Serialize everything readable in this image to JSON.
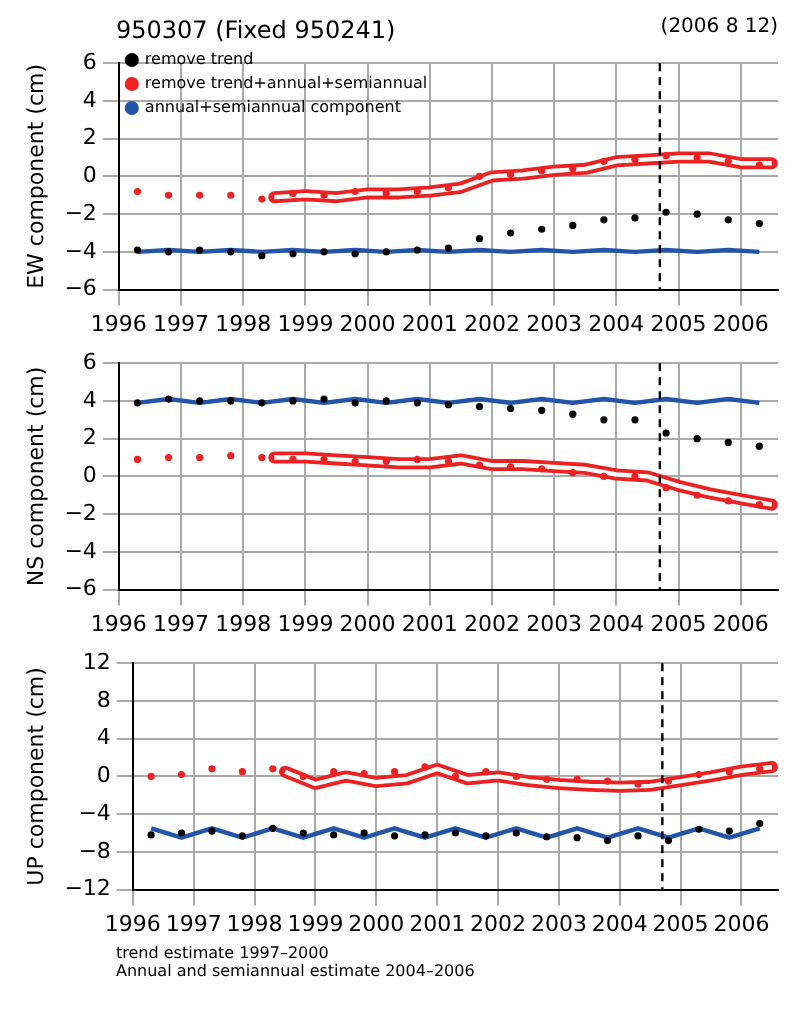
{
  "chart_data": [
    {
      "type": "scatter",
      "title": "950307 (Fixed 950241)",
      "subtitle": "(2006 8 12)",
      "ylabel": "EW component (cm)",
      "xlim": [
        1996,
        2006.6
      ],
      "xticks": [
        1996,
        1997,
        1998,
        1999,
        2000,
        2001,
        2002,
        2003,
        2004,
        2005,
        2006
      ],
      "ylim": [
        -6,
        6
      ],
      "yticks": [
        -6,
        -4,
        -2,
        0,
        2,
        4,
        6
      ],
      "grid": true,
      "legend": "top left",
      "ref_lines": [
        {
          "axis": "x",
          "value": 2004.7,
          "color": "#000000",
          "line_style": "dashed"
        }
      ],
      "series": [
        {
          "type": "scatter",
          "name": "remove trend",
          "color": "#000000",
          "marker": "circle",
          "x": [
            1996.3,
            1996.8,
            1997.3,
            1997.8,
            1998.3,
            1998.8,
            1999.3,
            1999.8,
            2000.3,
            2000.8,
            2001.3,
            2001.8,
            2002.3,
            2002.8,
            2003.3,
            2003.8,
            2004.3,
            2004.8,
            2005.3,
            2005.8,
            2006.3
          ],
          "values": [
            -3.9,
            -4.0,
            -3.9,
            -4.0,
            -4.2,
            -4.1,
            -4.0,
            -4.1,
            -4.0,
            -3.9,
            -3.8,
            -3.3,
            -3.0,
            -2.8,
            -2.6,
            -2.3,
            -2.2,
            -1.9,
            -2.0,
            -2.3,
            -2.5
          ]
        },
        {
          "type": "scatter",
          "name": "remove trend+annual+semiannual",
          "color": "#ee2222",
          "marker": "circle",
          "x": [
            1996.3,
            1996.8,
            1997.3,
            1997.8,
            1998.3,
            1998.8,
            1999.3,
            1999.8,
            2000.3,
            2000.8,
            2001.3,
            2001.8,
            2002.3,
            2002.8,
            2003.3,
            2003.8,
            2004.3,
            2004.8,
            2005.3,
            2005.8,
            2006.3
          ],
          "values": [
            -0.8,
            -1.0,
            -1.0,
            -1.0,
            -1.2,
            -0.9,
            -1.0,
            -0.8,
            -0.9,
            -0.8,
            -0.6,
            0.0,
            0.1,
            0.3,
            0.4,
            0.8,
            0.9,
            1.1,
            1.0,
            0.8,
            0.6
          ]
        },
        {
          "type": "line",
          "color": "#ffffff",
          "x": [
            1998.5,
            1999,
            1999.5,
            2000,
            2000.5,
            2001,
            2001.5,
            2002,
            2002.5,
            2003,
            2003.5,
            2004,
            2004.5,
            2005,
            2005.5,
            2006,
            2006.5
          ],
          "values": [
            -1.1,
            -1.0,
            -1.1,
            -0.9,
            -0.9,
            -0.8,
            -0.6,
            0.0,
            0.1,
            0.3,
            0.4,
            0.8,
            0.9,
            1.0,
            1.0,
            0.7,
            0.7
          ]
        },
        {
          "type": "line",
          "name": "annual+semiannual component",
          "color": "#2255aa",
          "x": [
            1996.3,
            1996.8,
            1997.3,
            1997.8,
            1998.3,
            1998.8,
            1999.3,
            1999.8,
            2000.3,
            2000.8,
            2001.3,
            2001.8,
            2002.3,
            2002.8,
            2003.3,
            2003.8,
            2004.3,
            2004.8,
            2005.3,
            2005.8,
            2006.3
          ],
          "values": [
            -4.0,
            -3.9,
            -4.0,
            -3.9,
            -4.0,
            -3.9,
            -4.0,
            -3.9,
            -4.0,
            -3.9,
            -4.0,
            -3.9,
            -4.0,
            -3.9,
            -4.0,
            -3.9,
            -4.0,
            -3.9,
            -4.0,
            -3.9,
            -4.0
          ]
        }
      ]
    },
    {
      "type": "scatter",
      "ylabel": "NS component (cm)",
      "xlim": [
        1996,
        2006.6
      ],
      "xticks": [
        1996,
        1997,
        1998,
        1999,
        2000,
        2001,
        2002,
        2003,
        2004,
        2005,
        2006
      ],
      "ylim": [
        -6,
        6
      ],
      "yticks": [
        -6,
        -4,
        -2,
        0,
        2,
        4,
        6
      ],
      "grid": true,
      "ref_lines": [
        {
          "axis": "x",
          "value": 2004.7,
          "color": "#000000",
          "line_style": "dashed"
        }
      ],
      "series": [
        {
          "type": "scatter",
          "color": "#000000",
          "marker": "circle",
          "x": [
            1996.3,
            1996.8,
            1997.3,
            1997.8,
            1998.3,
            1998.8,
            1999.3,
            1999.8,
            2000.3,
            2000.8,
            2001.3,
            2001.8,
            2002.3,
            2002.8,
            2003.3,
            2003.8,
            2004.3,
            2004.8,
            2005.3,
            2005.8,
            2006.3
          ],
          "values": [
            3.9,
            4.1,
            4.0,
            4.0,
            3.9,
            4.0,
            4.1,
            3.9,
            4.0,
            3.9,
            3.8,
            3.7,
            3.6,
            3.5,
            3.3,
            3.0,
            3.0,
            2.3,
            2.0,
            1.8,
            1.6
          ]
        },
        {
          "type": "scatter",
          "color": "#ee2222",
          "marker": "circle",
          "x": [
            1996.3,
            1996.8,
            1997.3,
            1997.8,
            1998.3,
            1998.8,
            1999.3,
            1999.8,
            2000.3,
            2000.8,
            2001.3,
            2001.8,
            2002.3,
            2002.8,
            2003.3,
            2003.8,
            2004.3,
            2004.8,
            2005.3,
            2005.8,
            2006.3
          ],
          "values": [
            0.9,
            1.0,
            1.0,
            1.1,
            1.0,
            0.9,
            0.9,
            0.8,
            0.8,
            0.9,
            0.8,
            0.6,
            0.5,
            0.4,
            0.2,
            0.0,
            0.0,
            -0.6,
            -1.0,
            -1.3,
            -1.5
          ]
        },
        {
          "type": "line",
          "color": "#ffffff",
          "x": [
            1998.5,
            1999,
            1999.5,
            2000,
            2000.5,
            2001,
            2001.5,
            2002,
            2002.5,
            2003,
            2003.5,
            2004,
            2004.5,
            2005,
            2005.5,
            2006,
            2006.5
          ],
          "values": [
            1.0,
            1.0,
            0.9,
            0.8,
            0.7,
            0.7,
            0.9,
            0.6,
            0.6,
            0.5,
            0.4,
            0.1,
            0.0,
            -0.5,
            -0.9,
            -1.2,
            -1.5
          ]
        },
        {
          "type": "line",
          "color": "#2255aa",
          "x": [
            1996.3,
            1996.8,
            1997.3,
            1997.8,
            1998.3,
            1998.8,
            1999.3,
            1999.8,
            2000.3,
            2000.8,
            2001.3,
            2001.8,
            2002.3,
            2002.8,
            2003.3,
            2003.8,
            2004.3,
            2004.8,
            2005.3,
            2005.8,
            2006.3
          ],
          "values": [
            3.9,
            4.1,
            3.9,
            4.1,
            3.9,
            4.1,
            3.9,
            4.1,
            3.9,
            4.1,
            3.9,
            4.1,
            3.9,
            4.1,
            3.9,
            4.1,
            3.9,
            4.1,
            3.9,
            4.1,
            3.9
          ]
        }
      ]
    },
    {
      "type": "scatter",
      "ylabel": "UP component (cm)",
      "xlim": [
        1996,
        2006.6
      ],
      "xticks": [
        1996,
        1997,
        1998,
        1999,
        2000,
        2001,
        2002,
        2003,
        2004,
        2005,
        2006
      ],
      "ylim": [
        -12,
        12
      ],
      "yticks": [
        -12,
        -8,
        -4,
        0,
        4,
        8,
        12
      ],
      "grid": true,
      "ref_lines": [
        {
          "axis": "x",
          "value": 2004.7,
          "color": "#000000",
          "line_style": "dashed"
        }
      ],
      "annotations": [
        "trend estimate 1997–2000",
        "Annual and semiannual estimate 2004–2006"
      ],
      "series": [
        {
          "type": "scatter",
          "color": "#000000",
          "marker": "circle",
          "x": [
            1996.3,
            1996.8,
            1997.3,
            1997.8,
            1998.3,
            1998.8,
            1999.3,
            1999.8,
            2000.3,
            2000.8,
            2001.3,
            2001.8,
            2002.3,
            2002.8,
            2003.3,
            2003.8,
            2004.3,
            2004.8,
            2005.3,
            2005.8,
            2006.3
          ],
          "values": [
            -6.2,
            -6.0,
            -5.8,
            -6.3,
            -5.5,
            -6.0,
            -6.2,
            -6.0,
            -6.3,
            -6.2,
            -6.0,
            -6.3,
            -6.0,
            -6.4,
            -6.5,
            -6.8,
            -6.3,
            -6.8,
            -5.6,
            -5.8,
            -5.0
          ]
        },
        {
          "type": "scatter",
          "color": "#ee2222",
          "marker": "circle",
          "x": [
            1996.3,
            1996.8,
            1997.3,
            1997.8,
            1998.3,
            1998.8,
            1999.3,
            1999.8,
            2000.3,
            2000.8,
            2001.3,
            2001.8,
            2002.3,
            2002.8,
            2003.3,
            2003.8,
            2004.3,
            2004.8,
            2005.3,
            2005.8,
            2006.3
          ],
          "values": [
            0.0,
            0.2,
            0.8,
            0.5,
            0.8,
            0.0,
            0.5,
            0.3,
            0.5,
            1.0,
            0.0,
            0.5,
            0.0,
            -0.3,
            -0.3,
            -0.5,
            -0.8,
            -0.5,
            0.2,
            0.5,
            0.8
          ]
        },
        {
          "type": "line",
          "color": "#ffffff",
          "x": [
            1998.5,
            1999,
            1999.5,
            2000,
            2000.5,
            2001,
            2001.5,
            2002,
            2002.5,
            2003,
            2003.5,
            2004,
            2004.5,
            2005,
            2005.5,
            2006,
            2006.5
          ],
          "values": [
            0.5,
            -0.8,
            0.0,
            -0.6,
            -0.3,
            0.8,
            -0.3,
            0.0,
            -0.5,
            -0.8,
            -1.0,
            -1.1,
            -1.0,
            -0.5,
            0.0,
            0.6,
            1.0
          ]
        },
        {
          "type": "line",
          "color": "#2255aa",
          "x": [
            1996.3,
            1996.8,
            1997.3,
            1997.8,
            1998.3,
            1998.8,
            1999.3,
            1999.8,
            2000.3,
            2000.8,
            2001.3,
            2001.8,
            2002.3,
            2002.8,
            2003.3,
            2003.8,
            2004.3,
            2004.8,
            2005.3,
            2005.8,
            2006.3
          ],
          "values": [
            -5.5,
            -6.5,
            -5.5,
            -6.5,
            -5.5,
            -6.5,
            -5.5,
            -6.5,
            -5.5,
            -6.5,
            -5.5,
            -6.5,
            -5.5,
            -6.5,
            -5.5,
            -6.5,
            -5.5,
            -6.5,
            -5.5,
            -6.5,
            -5.5
          ]
        }
      ]
    }
  ]
}
